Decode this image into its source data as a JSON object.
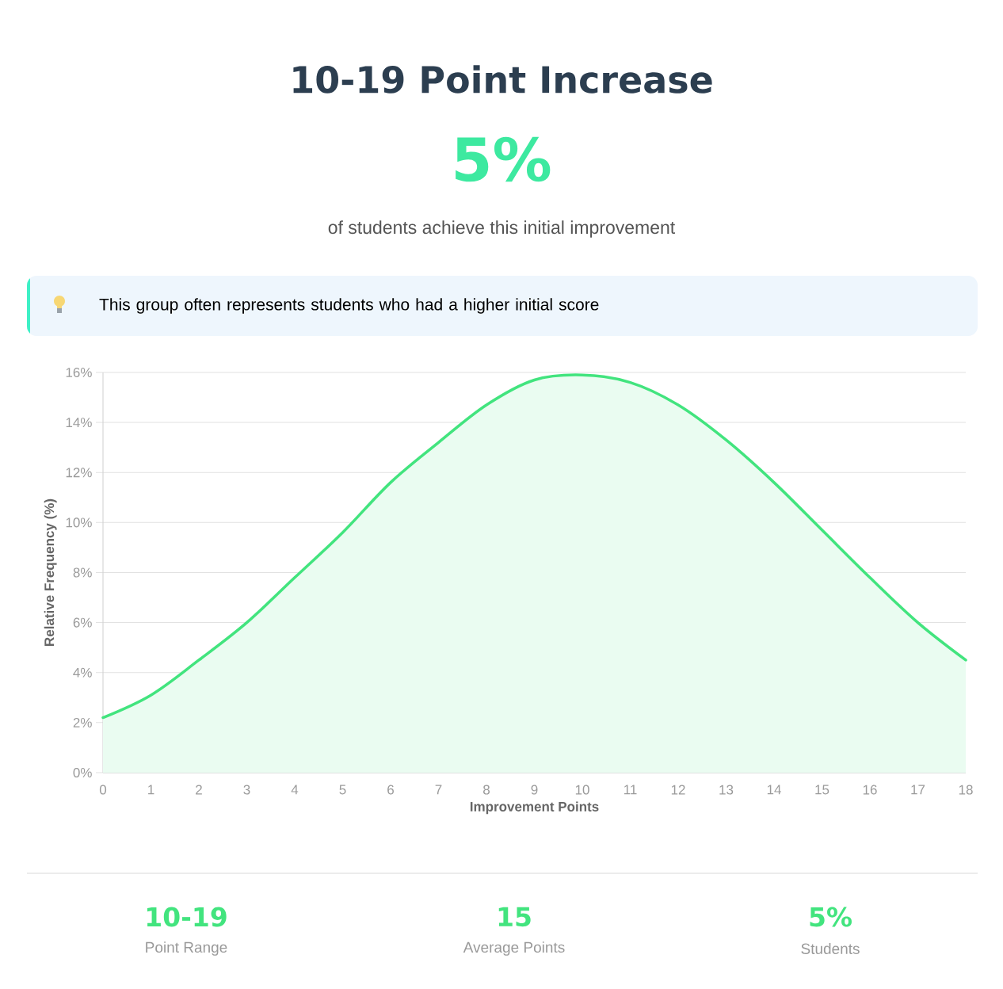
{
  "chart_data": {
    "type": "area",
    "title": "10-19 Point Increase",
    "annotations": [
      "5%",
      "of students achieve this initial improvement",
      "This group often represents students who had a higher initial score",
      "10-19",
      "Point Range",
      "15",
      "Average Points",
      "5%",
      "Students"
    ],
    "xlabel": "Improvement Points",
    "ylabel": "Relative Frequency (%)",
    "x": [
      0,
      1,
      2,
      3,
      4,
      5,
      6,
      7,
      8,
      9,
      10,
      11,
      12,
      13,
      14,
      15,
      16,
      17,
      18
    ],
    "values": [
      2.2,
      3.1,
      4.5,
      6.0,
      7.8,
      9.6,
      11.6,
      13.2,
      14.7,
      15.7,
      15.9,
      15.6,
      14.7,
      13.3,
      11.6,
      9.7,
      7.8,
      6.0,
      4.5
    ],
    "color": "#42e47e",
    "xlim": [
      0,
      18
    ],
    "xticks": [
      0,
      1,
      2,
      3,
      4,
      5,
      6,
      7,
      8,
      9,
      10,
      11,
      12,
      13,
      14,
      15,
      16,
      17,
      18
    ],
    "ylim": [
      0,
      16
    ],
    "yticks": [
      {
        "value": 0,
        "label": "0%"
      },
      {
        "value": 2,
        "label": "2%"
      },
      {
        "value": 4,
        "label": "4%"
      },
      {
        "value": 6,
        "label": "6%"
      },
      {
        "value": 8,
        "label": "8%"
      },
      {
        "value": 10,
        "label": "10%"
      },
      {
        "value": 12,
        "label": "12%"
      },
      {
        "value": 14,
        "label": "14%"
      },
      {
        "value": 16,
        "label": "16%"
      }
    ],
    "grid": "y"
  }
}
